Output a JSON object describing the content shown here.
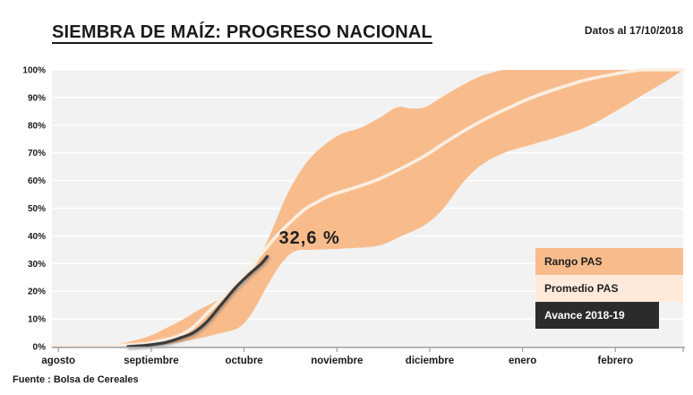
{
  "header": {
    "title": "SIEMBRA DE MAÍZ: PROGRESO NACIONAL",
    "date_note": "Datos al 17/10/2018"
  },
  "footer": {
    "source": "Fuente : Bolsa de Cereales"
  },
  "legend": [
    {
      "label": "Rango PAS",
      "bg": "#F8BC8C",
      "fg": "#1F1F1F"
    },
    {
      "label": "Promedio PAS",
      "bg": "#FDEADB",
      "fg": "#1F1F1F"
    },
    {
      "label": "Avance 2018-19",
      "bg": "#2B2B2B",
      "fg": "#FFFFFF"
    }
  ],
  "colors": {
    "plot_bg": "#F2F2F2",
    "gridline": "#FFFFFF",
    "band": "#F8BC8C",
    "promedio_line": "#FCEEE0",
    "avance_line": "#3B3B3B",
    "axis": "#A6A6A6",
    "text": "#1A1A1A"
  },
  "chart_data": {
    "type": "area",
    "title": "SIEMBRA DE MAÍZ: PROGRESO NACIONAL",
    "subtitle": "Datos al 17/10/2018",
    "source": "Fuente : Bolsa de Cereales",
    "legend_position": "right-inside",
    "x_axis": {
      "labels": [
        "agosto",
        "septiembre",
        "octubre",
        "noviembre",
        "diciembre",
        "enero",
        "febrero"
      ],
      "range": [
        -0.07,
        6.73
      ],
      "unit": "month (0 = agosto tick)"
    },
    "y_axis": {
      "tick_labels": [
        "0%",
        "10%",
        "20%",
        "30%",
        "40%",
        "50%",
        "60%",
        "70%",
        "80%",
        "90%",
        "100%"
      ],
      "range": [
        0,
        100
      ],
      "unit": "%",
      "grid": true
    },
    "series": [
      {
        "name": "Rango PAS (máximo)",
        "type": "band-upper",
        "color": "#F8BC8C",
        "x": [
          -0.07,
          0.35,
          0.65,
          0.95,
          1.15,
          1.35,
          1.5,
          1.7,
          1.85,
          2.0,
          2.15,
          2.3,
          2.45,
          2.6,
          2.75,
          2.95,
          3.1,
          3.25,
          3.45,
          3.65,
          3.8,
          3.95,
          4.1,
          4.3,
          4.5,
          4.7,
          4.85,
          5.5,
          6.73
        ],
        "y": [
          0,
          0.2,
          1,
          3.5,
          6.5,
          10,
          13,
          16.5,
          19.5,
          23,
          31,
          42,
          54,
          63,
          69.5,
          75,
          77.5,
          79,
          82.5,
          86.5,
          86,
          86.5,
          89.5,
          93.5,
          97,
          99.3,
          100,
          100,
          100
        ]
      },
      {
        "name": "Rango PAS (mínimo)",
        "type": "band-lower",
        "color": "#F8BC8C",
        "x": [
          -0.07,
          0.95,
          1.2,
          1.45,
          1.7,
          1.95,
          2.1,
          2.25,
          2.4,
          2.55,
          2.75,
          3.1,
          3.45,
          3.7,
          3.95,
          4.15,
          4.35,
          4.55,
          4.8,
          5.1,
          5.4,
          5.7,
          6.0,
          6.3,
          6.55,
          6.73
        ],
        "y": [
          0,
          0.3,
          1,
          2.5,
          4.5,
          7,
          13,
          22,
          30,
          34.5,
          35,
          35.5,
          36.5,
          40,
          44,
          50,
          59,
          65.5,
          70,
          73,
          76,
          79.5,
          85,
          91,
          96,
          100
        ]
      },
      {
        "name": "Promedio PAS",
        "type": "line",
        "color": "#FCEEE0",
        "x": [
          -0.07,
          0.5,
          0.9,
          1.15,
          1.3,
          1.45,
          1.6,
          1.75,
          1.9,
          2.05,
          2.2,
          2.35,
          2.5,
          2.65,
          2.8,
          2.96,
          3.2,
          3.45,
          3.7,
          3.95,
          4.2,
          4.5,
          4.8,
          5.1,
          5.4,
          5.7,
          6.0,
          6.3,
          6.73
        ],
        "y": [
          0,
          0.3,
          1,
          2.5,
          4,
          7,
          12,
          17,
          22,
          28,
          34,
          40,
          45,
          49.5,
          52.5,
          55,
          57.5,
          60.5,
          64.5,
          69,
          74.5,
          80.5,
          85.5,
          90,
          93.5,
          96.5,
          98.5,
          100,
          100
        ]
      },
      {
        "name": "Avance 2018-19",
        "type": "line",
        "color": "#3B3B3B",
        "x": [
          0.75,
          0.95,
          1.15,
          1.3,
          1.45,
          1.6,
          1.75,
          1.9,
          2.05,
          2.18,
          2.25
        ],
        "y": [
          0,
          0.5,
          1.5,
          3,
          5,
          9,
          15,
          21,
          26,
          29.8,
          32.6
        ]
      }
    ],
    "annotation": {
      "text": "32,6 %",
      "x": 2.25,
      "y": 32.6
    }
  }
}
